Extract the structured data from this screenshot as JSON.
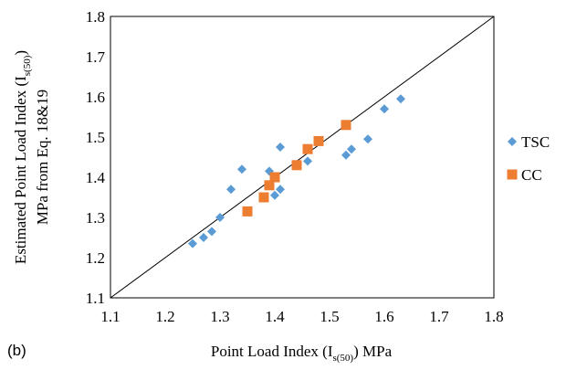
{
  "panel_label": "(b)",
  "chart_data": {
    "type": "scatter",
    "xlabel": {
      "pre": "Point Load Index (I",
      "sub": "s(50)",
      "post": ") MPa"
    },
    "ylabel": {
      "line1_pre": "Estimated Point Load Index (I",
      "line1_sub": "s(50)",
      "line1_post": ")",
      "line2": "MPa from  Eq. 18&19"
    },
    "xlim": [
      1.1,
      1.8
    ],
    "ylim": [
      1.1,
      1.8
    ],
    "xticks": [
      "1.1",
      "1.2",
      "1.3",
      "1.4",
      "1.5",
      "1.6",
      "1.7",
      "1.8"
    ],
    "yticks": [
      "1.1",
      "1.2",
      "1.3",
      "1.4",
      "1.5",
      "1.6",
      "1.7",
      "1.8"
    ],
    "grid": false,
    "reference_line": [
      [
        1.1,
        1.1
      ],
      [
        1.8,
        1.8
      ]
    ],
    "legend_position": "right",
    "series": [
      {
        "name": "TSC",
        "marker": "diamond",
        "color": "#5B9BD5",
        "points": [
          [
            1.25,
            1.235
          ],
          [
            1.27,
            1.25
          ],
          [
            1.285,
            1.265
          ],
          [
            1.3,
            1.3
          ],
          [
            1.32,
            1.37
          ],
          [
            1.34,
            1.42
          ],
          [
            1.39,
            1.415
          ],
          [
            1.4,
            1.355
          ],
          [
            1.41,
            1.37
          ],
          [
            1.41,
            1.475
          ],
          [
            1.46,
            1.44
          ],
          [
            1.53,
            1.455
          ],
          [
            1.54,
            1.47
          ],
          [
            1.57,
            1.495
          ],
          [
            1.6,
            1.57
          ],
          [
            1.63,
            1.595
          ]
        ]
      },
      {
        "name": "CC",
        "marker": "square",
        "color": "#ED7D31",
        "points": [
          [
            1.35,
            1.315
          ],
          [
            1.38,
            1.35
          ],
          [
            1.39,
            1.38
          ],
          [
            1.4,
            1.4
          ],
          [
            1.44,
            1.43
          ],
          [
            1.46,
            1.47
          ],
          [
            1.48,
            1.49
          ],
          [
            1.53,
            1.53
          ]
        ]
      }
    ]
  }
}
